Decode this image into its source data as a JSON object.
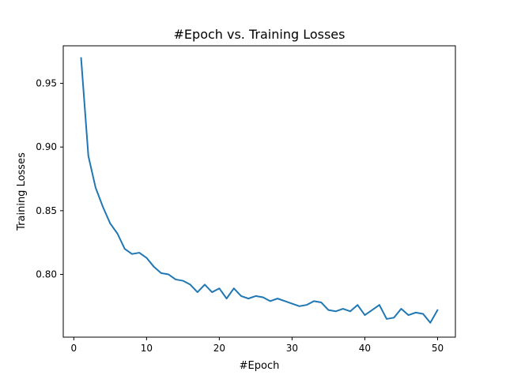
{
  "chart_data": {
    "type": "line",
    "title": "#Epoch vs. Training Losses",
    "xlabel": "#Epoch",
    "ylabel": "Training Losses",
    "xlim": [
      -1.45,
      52.45
    ],
    "ylim": [
      0.7507,
      0.9795
    ],
    "xticks": [
      0,
      10,
      20,
      30,
      40,
      50
    ],
    "xtick_labels": [
      "0",
      "10",
      "20",
      "30",
      "40",
      "50"
    ],
    "yticks": [
      0.8,
      0.85,
      0.9,
      0.95
    ],
    "ytick_labels": [
      "0.80",
      "0.85",
      "0.90",
      "0.95"
    ],
    "grid": false,
    "colors": {
      "series": "#1f77b4",
      "frame": "#000000"
    },
    "x": [
      1,
      2,
      3,
      4,
      5,
      6,
      7,
      8,
      9,
      10,
      11,
      12,
      13,
      14,
      15,
      16,
      17,
      18,
      19,
      20,
      21,
      22,
      23,
      24,
      25,
      26,
      27,
      28,
      29,
      30,
      31,
      32,
      33,
      34,
      35,
      36,
      37,
      38,
      39,
      40,
      41,
      42,
      43,
      44,
      45,
      46,
      47,
      48,
      49,
      50
    ],
    "series": [
      {
        "values": [
          0.97,
          0.893,
          0.868,
          0.853,
          0.84,
          0.832,
          0.82,
          0.816,
          0.817,
          0.813,
          0.806,
          0.801,
          0.8,
          0.796,
          0.795,
          0.792,
          0.786,
          0.792,
          0.786,
          0.789,
          0.781,
          0.789,
          0.783,
          0.781,
          0.783,
          0.782,
          0.779,
          0.781,
          0.779,
          0.777,
          0.775,
          0.776,
          0.779,
          0.778,
          0.772,
          0.771,
          0.773,
          0.771,
          0.776,
          0.768,
          0.772,
          0.776,
          0.765,
          0.766,
          0.773,
          0.768,
          0.77,
          0.769,
          0.762,
          0.772
        ]
      }
    ]
  }
}
